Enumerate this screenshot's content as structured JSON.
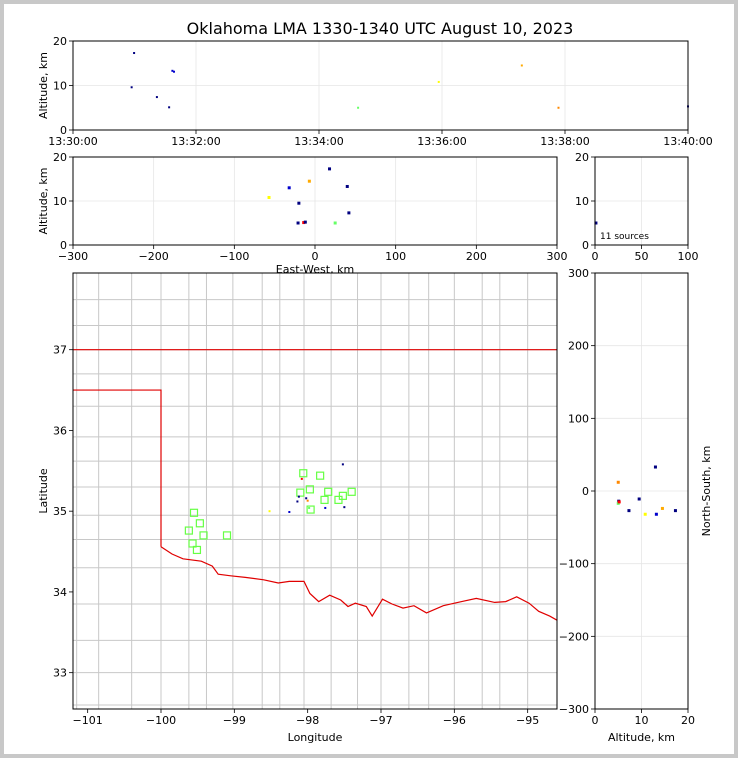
{
  "title": "Oklahoma LMA 1330-1340 UTC August 10, 2023",
  "chart_data": [
    {
      "panel": "time-height",
      "type": "scatter",
      "xlabel": "",
      "ylabel": "Altitude, km",
      "x_ticks": [
        "13:30:00",
        "13:32:00",
        "13:34:00",
        "13:36:00",
        "13:38:00",
        "13:40:00"
      ],
      "y_ticks": [
        "0",
        "10",
        "20"
      ],
      "xlim_seconds": [
        0,
        600
      ],
      "ylim": [
        0,
        20
      ],
      "points": [
        {
          "t": 75,
          "alt": 17.3,
          "color": "#000080"
        },
        {
          "t": 72,
          "alt": 9.6,
          "color": "#000080"
        },
        {
          "t": 103,
          "alt": 7.4,
          "color": "#000080"
        },
        {
          "t": 118,
          "alt": 5.1,
          "color": "#000080"
        },
        {
          "t": 122,
          "alt": 13.3,
          "color": "#0000cc"
        },
        {
          "t": 124,
          "alt": 13.1,
          "color": "#0000cc"
        },
        {
          "t": 350,
          "alt": 5.0,
          "color": "#66ff66"
        },
        {
          "t": 449,
          "alt": 10.8,
          "color": "#ffff00"
        },
        {
          "t": 551,
          "alt": 14.5,
          "color": "#ffaa00"
        },
        {
          "t": 596,
          "alt": 5.0,
          "color": "#ff8800"
        },
        {
          "t": 755,
          "alt": 5.3,
          "color": "#000080"
        }
      ]
    },
    {
      "panel": "east-west-altitude",
      "type": "scatter",
      "xlabel": "East-West, km",
      "ylabel": "Altitude, km",
      "x_ticks": [
        "−300",
        "−200",
        "−100",
        "0",
        "100",
        "200",
        "300"
      ],
      "y_ticks": [
        "0",
        "10",
        "20"
      ],
      "xlim": [
        -300,
        300
      ],
      "ylim": [
        0,
        20
      ],
      "points": [
        {
          "x": 18,
          "alt": 17.3,
          "color": "#000080"
        },
        {
          "x": -32,
          "alt": 13.0,
          "color": "#0000cc"
        },
        {
          "x": 40,
          "alt": 13.3,
          "color": "#000080"
        },
        {
          "x": -7,
          "alt": 14.5,
          "color": "#ffaa00"
        },
        {
          "x": -57,
          "alt": 10.8,
          "color": "#ffff00"
        },
        {
          "x": -20,
          "alt": 9.5,
          "color": "#000080"
        },
        {
          "x": 42,
          "alt": 7.3,
          "color": "#000080"
        },
        {
          "x": -21,
          "alt": 5.0,
          "color": "#000080"
        },
        {
          "x": -14,
          "alt": 5.1,
          "color": "#ff0000"
        },
        {
          "x": -12,
          "alt": 5.2,
          "color": "#000080"
        },
        {
          "x": 25,
          "alt": 5.0,
          "color": "#66ff66"
        }
      ]
    },
    {
      "panel": "altitude-histogram",
      "type": "bar",
      "x_ticks": [
        "0",
        "50",
        "100"
      ],
      "y_ticks": [
        "0",
        "10",
        "20"
      ],
      "xlim": [
        0,
        100
      ],
      "ylim": [
        0,
        20
      ],
      "annotation": "11 sources",
      "points": [
        {
          "x": 1,
          "alt": 5.0,
          "color": "#000080"
        }
      ]
    },
    {
      "panel": "plan-view",
      "type": "scatter",
      "xlabel": "Longitude",
      "ylabel": "Latitude",
      "x_ticks": [
        "−101",
        "−100",
        "−99",
        "−98",
        "−97",
        "−96",
        "−95"
      ],
      "y_ticks": [
        "33",
        "34",
        "35",
        "36",
        "37"
      ],
      "xlim": [
        -101.2,
        -94.6
      ],
      "ylim": [
        32.55,
        37.95
      ],
      "stations": [
        [
          -99.55,
          34.98
        ],
        [
          -99.47,
          34.85
        ],
        [
          -99.42,
          34.7
        ],
        [
          -99.62,
          34.76
        ],
        [
          -99.57,
          34.6
        ],
        [
          -99.51,
          34.52
        ],
        [
          -99.1,
          34.7
        ],
        [
          -98.06,
          35.47
        ],
        [
          -98.1,
          35.23
        ],
        [
          -97.97,
          35.27
        ],
        [
          -97.96,
          35.02
        ],
        [
          -97.83,
          35.44
        ],
        [
          -97.77,
          35.14
        ],
        [
          -97.72,
          35.24
        ],
        [
          -97.58,
          35.14
        ],
        [
          -97.52,
          35.19
        ],
        [
          -97.4,
          35.24
        ]
      ],
      "points": [
        {
          "lon": -97.52,
          "lat": 35.58,
          "color": "#000080"
        },
        {
          "lon": -98.25,
          "lat": 34.99,
          "color": "#0000cc"
        },
        {
          "lon": -97.5,
          "lat": 35.05,
          "color": "#000080"
        },
        {
          "lon": -97.76,
          "lat": 35.04,
          "color": "#0000cc"
        },
        {
          "lon": -98.52,
          "lat": 35.0,
          "color": "#ffff00"
        },
        {
          "lon": -98.12,
          "lat": 35.18,
          "color": "#000080"
        },
        {
          "lon": -98.14,
          "lat": 35.12,
          "color": "#000080"
        },
        {
          "lon": -98.08,
          "lat": 35.4,
          "color": "#ff0000"
        },
        {
          "lon": -98.0,
          "lat": 35.13,
          "color": "#ff8800"
        },
        {
          "lon": -98.02,
          "lat": 35.16,
          "color": "#000080"
        },
        {
          "lon": -97.98,
          "lat": 35.04,
          "color": "#66ff66"
        }
      ]
    },
    {
      "panel": "altitude-north-south",
      "type": "scatter",
      "xlabel": "Altitude, km",
      "ylabel": "North-South, km",
      "x_ticks": [
        "0",
        "10",
        "20"
      ],
      "y_ticks": [
        "−300",
        "−200",
        "−100",
        "0",
        "100",
        "200",
        "300"
      ],
      "xlim": [
        0,
        20
      ],
      "ylim": [
        -300,
        300
      ],
      "points": [
        {
          "alt": 13.0,
          "y": 33,
          "color": "#000080"
        },
        {
          "alt": 5.0,
          "y": 12,
          "color": "#ff8800"
        },
        {
          "alt": 9.5,
          "y": -11,
          "color": "#000080"
        },
        {
          "alt": 5.1,
          "y": -14,
          "color": "#000080"
        },
        {
          "alt": 5.0,
          "y": -17,
          "color": "#66ff66"
        },
        {
          "alt": 7.3,
          "y": -27,
          "color": "#000080"
        },
        {
          "alt": 14.5,
          "y": -24,
          "color": "#ffaa00"
        },
        {
          "alt": 10.8,
          "y": -32,
          "color": "#ffff00"
        },
        {
          "alt": 13.2,
          "y": -32,
          "color": "#0000cc"
        },
        {
          "alt": 17.3,
          "y": -27,
          "color": "#000080"
        },
        {
          "alt": 5.2,
          "y": -15,
          "color": "#ff0000"
        }
      ]
    }
  ]
}
